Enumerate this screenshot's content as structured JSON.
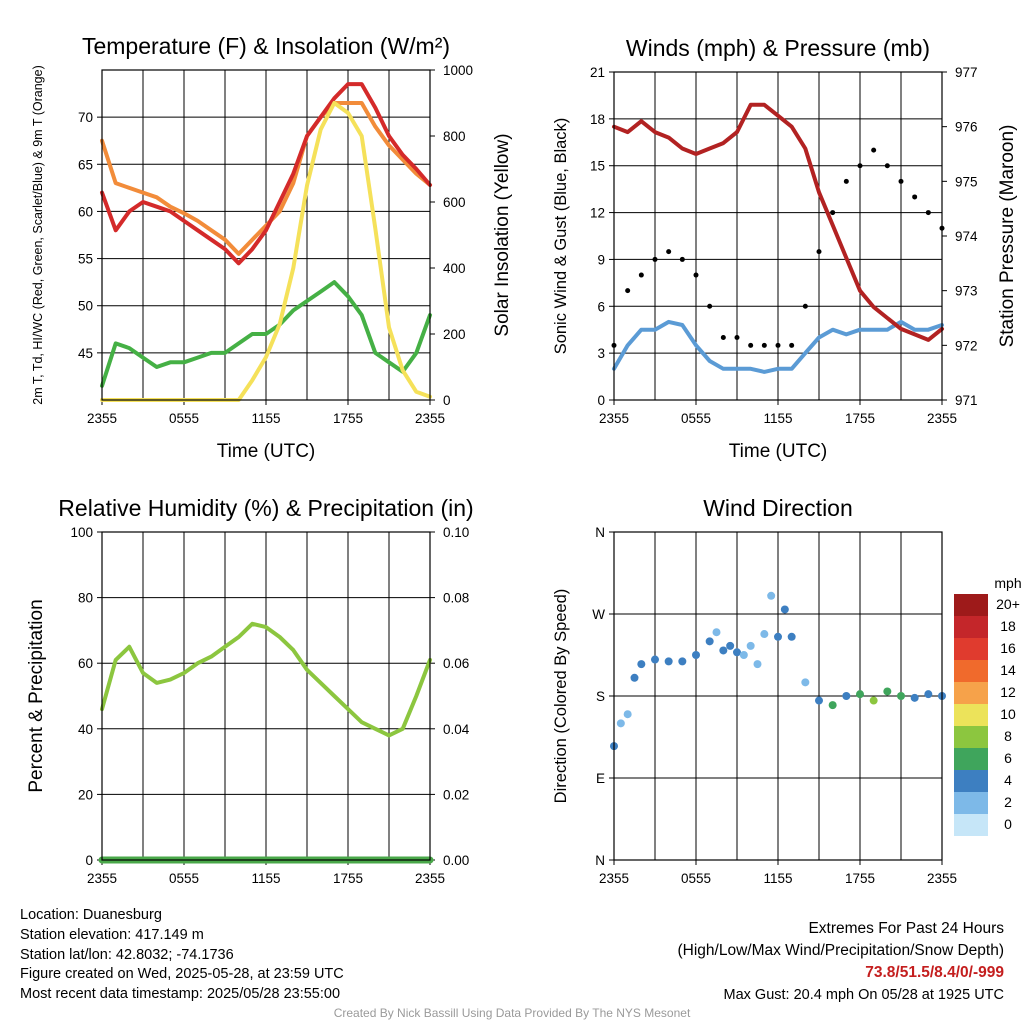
{
  "chart_data": [
    {
      "type": "line",
      "title": "Temperature (F) & Insolation (W/m²)",
      "xlabel": "Time (UTC)",
      "ylabel_left": "2m T, Td, HI/WC (Red, Green, Scarlet/Blue) & 9m T (Orange)",
      "ylabel_right": "Solar Insolation (Yellow)",
      "x_ticks": [
        "2355",
        "0555",
        "1155",
        "1755",
        "2355"
      ],
      "y_ticks_left": [
        "45",
        "50",
        "55",
        "60",
        "65",
        "70"
      ],
      "y_ticks_right": [
        "0",
        "200",
        "400",
        "600",
        "800",
        "1000"
      ],
      "ylim_left": [
        40,
        75
      ],
      "ylim_right": [
        0,
        1000
      ],
      "x_hours": [
        0,
        1,
        2,
        3,
        4,
        5,
        6,
        7,
        8,
        9,
        10,
        11,
        12,
        13,
        14,
        15,
        16,
        17,
        18,
        19,
        20,
        21,
        22,
        23,
        24
      ],
      "series": [
        {
          "color": "#f28c3a",
          "values": [
            67.5,
            63,
            62.5,
            62,
            61.5,
            60.5,
            59.8,
            59,
            58,
            57,
            55.5,
            57,
            58.5,
            60,
            63,
            68,
            70,
            71.5,
            71.5,
            71.5,
            69,
            67,
            65.5,
            64,
            62.8
          ]
        },
        {
          "color": "#d42a2a",
          "values": [
            62,
            58,
            60,
            61,
            60.5,
            60,
            59,
            58,
            57,
            56,
            54.5,
            56,
            58,
            61,
            64,
            68,
            70,
            72,
            73.5,
            73.5,
            71,
            68,
            66,
            64.5,
            62.8
          ]
        },
        {
          "color": "#45b045",
          "values": [
            41.5,
            46,
            45.5,
            44.5,
            43.5,
            44,
            44,
            44.5,
            45,
            45,
            46,
            47,
            47,
            48,
            49.5,
            50.5,
            51.5,
            52.5,
            51,
            49,
            45,
            44,
            43,
            45,
            49
          ]
        },
        {
          "axis": "right",
          "color": "#f5e15a",
          "values": [
            0,
            0,
            0,
            0,
            0,
            0,
            0,
            0,
            0,
            0,
            0,
            60,
            130,
            230,
            400,
            650,
            820,
            900,
            870,
            800,
            520,
            220,
            90,
            25,
            10
          ]
        }
      ]
    },
    {
      "type": "line",
      "title": "Winds (mph) & Pressure (mb)",
      "xlabel": "Time (UTC)",
      "ylabel_left": "Sonic Wind & Gust (Blue, Black)",
      "ylabel_right": "Station Pressure (Maroon)",
      "x_ticks": [
        "2355",
        "0555",
        "1155",
        "1755",
        "2355"
      ],
      "y_ticks_left": [
        "0",
        "3",
        "6",
        "9",
        "12",
        "15",
        "18",
        "21"
      ],
      "y_ticks_right": [
        "971",
        "972",
        "973",
        "974",
        "975",
        "976",
        "977"
      ],
      "ylim_left": [
        0,
        21
      ],
      "ylim_right": [
        971,
        977
      ],
      "x_hours": [
        0,
        1,
        2,
        3,
        4,
        5,
        6,
        7,
        8,
        9,
        10,
        11,
        12,
        13,
        14,
        15,
        16,
        17,
        18,
        19,
        20,
        21,
        22,
        23,
        24
      ],
      "series": [
        {
          "color": "#5b9bd5",
          "values": [
            2,
            3.5,
            4.5,
            4.5,
            5,
            4.8,
            3.5,
            2.5,
            2,
            2,
            2,
            1.8,
            2,
            2,
            3,
            4,
            4.5,
            4.2,
            4.5,
            4.5,
            4.5,
            5,
            4.5,
            4.5,
            4.8
          ]
        },
        {
          "color": "#000000",
          "marker": "dot",
          "values": [
            3.5,
            7,
            8,
            9,
            9.5,
            9,
            8,
            6,
            4,
            4,
            3.5,
            3.5,
            3.5,
            3.5,
            6,
            9.5,
            12,
            14,
            15,
            16,
            15,
            14,
            13,
            12,
            11
          ]
        },
        {
          "axis": "right",
          "color": "#b22222",
          "values": [
            976.0,
            975.9,
            976.1,
            975.9,
            975.8,
            975.6,
            975.5,
            975.6,
            975.7,
            975.9,
            976.4,
            976.4,
            976.2,
            976.0,
            975.6,
            974.8,
            974.2,
            973.6,
            973.0,
            972.7,
            972.5,
            972.3,
            972.2,
            972.1,
            972.3
          ]
        }
      ]
    },
    {
      "type": "line",
      "title": "Relative Humidity (%) & Precipitation (in)",
      "xlabel": "",
      "ylabel_left": "Percent & Precipitation",
      "x_ticks": [
        "2355",
        "0555",
        "1155",
        "1755",
        "2355"
      ],
      "y_ticks_left": [
        "0",
        "20",
        "40",
        "60",
        "80",
        "100"
      ],
      "y_ticks_right": [
        "0.00",
        "0.02",
        "0.04",
        "0.06",
        "0.08",
        "0.10"
      ],
      "ylim_left": [
        0,
        100
      ],
      "ylim_right": [
        0,
        0.1
      ],
      "x_hours": [
        0,
        1,
        2,
        3,
        4,
        5,
        6,
        7,
        8,
        9,
        10,
        11,
        12,
        13,
        14,
        15,
        16,
        17,
        18,
        19,
        20,
        21,
        22,
        23,
        24
      ],
      "series": [
        {
          "color": "#8cc63f",
          "values": [
            46,
            61,
            65,
            57,
            54,
            55,
            57,
            60,
            62,
            65,
            68,
            72,
            71,
            68,
            64,
            58,
            54,
            50,
            46,
            42,
            40,
            38,
            40,
            50,
            61
          ]
        },
        {
          "axis": "right",
          "color": "#4aa84a",
          "values": [
            0,
            0,
            0,
            0,
            0,
            0,
            0,
            0,
            0,
            0,
            0,
            0,
            0,
            0,
            0,
            0,
            0,
            0,
            0,
            0,
            0,
            0,
            0,
            0,
            0
          ]
        }
      ]
    },
    {
      "type": "scatter",
      "title": "Wind Direction",
      "xlabel": "",
      "ylabel_left": "Direction (Colored By Speed)",
      "x_ticks": [
        "2355",
        "0555",
        "1155",
        "1755",
        "2355"
      ],
      "y_ticks_left": [
        "N",
        "E",
        "S",
        "W",
        "N"
      ],
      "ylim_left": [
        0,
        360
      ],
      "x_hours": [
        0,
        0.5,
        1,
        1.5,
        2,
        3,
        4,
        5,
        6,
        7,
        7.5,
        8,
        8.5,
        9,
        9.5,
        10,
        10.5,
        11,
        11.5,
        12,
        12.5,
        13,
        14,
        15,
        16,
        17,
        18,
        19,
        20,
        21,
        22,
        23,
        24
      ],
      "values": [
        125,
        150,
        160,
        200,
        215,
        220,
        218,
        218,
        225,
        240,
        250,
        230,
        235,
        228,
        225,
        235,
        215,
        248,
        290,
        245,
        275,
        245,
        195,
        175,
        170,
        180,
        182,
        175,
        185,
        180,
        178,
        182,
        180
      ],
      "speed": [
        3,
        2,
        2,
        4,
        4,
        4,
        4,
        4,
        4,
        4,
        2,
        3,
        4,
        3,
        2,
        2,
        2,
        2,
        2,
        3,
        3,
        3,
        2,
        4,
        5,
        4,
        6,
        7,
        6,
        5,
        4,
        4,
        4
      ],
      "colorbar": {
        "title": "mph",
        "labels": [
          "20+",
          "18",
          "16",
          "14",
          "12",
          "10",
          "8",
          "6",
          "4",
          "2",
          "0"
        ],
        "colors": [
          "#9e1a1a",
          "#c4262a",
          "#e03b2e",
          "#f06a2c",
          "#f6a24a",
          "#ece35a",
          "#8cc63f",
          "#3fa55c",
          "#3d7fc1",
          "#7db9e8",
          "#c6e6f8"
        ]
      }
    }
  ],
  "info": {
    "location": "Location: Duanesburg",
    "elevation": "Station elevation: 417.149 m",
    "latlon": "Station lat/lon: 42.8032; -74.1736",
    "created": "Figure created on Wed, 2025-05-28, at 23:59 UTC",
    "recent": "Most recent data timestamp: 2025/05/28 23:55:00"
  },
  "extremes": {
    "title": "Extremes For Past 24 Hours",
    "subtitle": "(High/Low/Max Wind/Precipitation/Snow Depth)",
    "values": "73.8/51.5/8.4/0/-999",
    "gust": "Max Gust: 20.4 mph On 05/28 at 1925 UTC",
    "values_color": "#c41e1e"
  },
  "footer": "Created By Nick Bassill Using Data Provided By The NYS Mesonet"
}
